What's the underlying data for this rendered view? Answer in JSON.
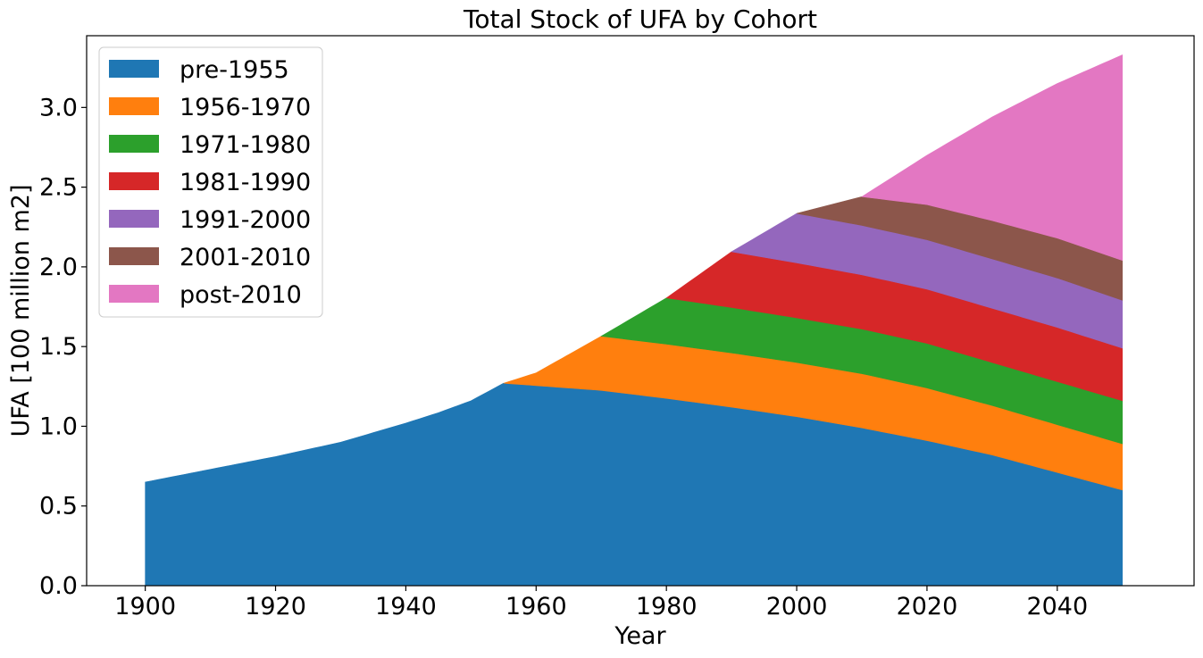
{
  "chart_data": {
    "type": "area",
    "title": "Total Stock of UFA by Cohort",
    "xlabel": "Year",
    "ylabel": "UFA [100 million m2]",
    "xlim": [
      1891,
      2061
    ],
    "ylim": [
      0,
      3.45
    ],
    "xticks": [
      1900,
      1920,
      1940,
      1960,
      1980,
      2000,
      2020,
      2040
    ],
    "yticks": [
      0.0,
      0.5,
      1.0,
      1.5,
      2.0,
      2.5,
      3.0
    ],
    "grid": false,
    "legend_position": "top-left",
    "series": [
      {
        "name": "pre-1955",
        "color": "#1f77b4",
        "points": [
          [
            1900,
            0.65
          ],
          [
            1905,
            0.69
          ],
          [
            1910,
            0.73
          ],
          [
            1915,
            0.77
          ],
          [
            1920,
            0.81
          ],
          [
            1925,
            0.855
          ],
          [
            1930,
            0.9
          ],
          [
            1935,
            0.96
          ],
          [
            1940,
            1.02
          ],
          [
            1945,
            1.085
          ],
          [
            1950,
            1.16
          ],
          [
            1955,
            1.27
          ],
          [
            1960,
            1.255
          ],
          [
            1970,
            1.225
          ],
          [
            1980,
            1.175
          ],
          [
            1990,
            1.12
          ],
          [
            2000,
            1.06
          ],
          [
            2010,
            0.99
          ],
          [
            2020,
            0.91
          ],
          [
            2030,
            0.82
          ],
          [
            2040,
            0.71
          ],
          [
            2050,
            0.6
          ]
        ]
      },
      {
        "name": "1956-1970",
        "color": "#ff7f0e",
        "points": [
          [
            1955,
            0
          ],
          [
            1960,
            0.08
          ],
          [
            1970,
            0.34
          ],
          [
            1980,
            0.34
          ],
          [
            1990,
            0.34
          ],
          [
            2000,
            0.34
          ],
          [
            2010,
            0.34
          ],
          [
            2020,
            0.33
          ],
          [
            2030,
            0.31
          ],
          [
            2040,
            0.3
          ],
          [
            2050,
            0.29
          ]
        ]
      },
      {
        "name": "1971-1980",
        "color": "#2ca02c",
        "points": [
          [
            1970,
            0
          ],
          [
            1980,
            0.29
          ],
          [
            1990,
            0.285
          ],
          [
            2000,
            0.28
          ],
          [
            2010,
            0.28
          ],
          [
            2020,
            0.28
          ],
          [
            2030,
            0.27
          ],
          [
            2040,
            0.27
          ],
          [
            2050,
            0.27
          ]
        ]
      },
      {
        "name": "1981-1990",
        "color": "#d62728",
        "points": [
          [
            1980,
            0
          ],
          [
            1990,
            0.35
          ],
          [
            2000,
            0.345
          ],
          [
            2010,
            0.34
          ],
          [
            2020,
            0.34
          ],
          [
            2030,
            0.34
          ],
          [
            2040,
            0.34
          ],
          [
            2050,
            0.33
          ]
        ]
      },
      {
        "name": "1991-2000",
        "color": "#9467bd",
        "points": [
          [
            1990,
            0
          ],
          [
            2000,
            0.31
          ],
          [
            2010,
            0.31
          ],
          [
            2020,
            0.31
          ],
          [
            2030,
            0.31
          ],
          [
            2040,
            0.31
          ],
          [
            2050,
            0.3
          ]
        ]
      },
      {
        "name": "2001-2010",
        "color": "#8c564b",
        "points": [
          [
            2000,
            0
          ],
          [
            2010,
            0.18
          ],
          [
            2020,
            0.22
          ],
          [
            2030,
            0.24
          ],
          [
            2040,
            0.25
          ],
          [
            2050,
            0.25
          ]
        ]
      },
      {
        "name": "post-2010",
        "color": "#e377c2",
        "points": [
          [
            2010,
            0
          ],
          [
            2020,
            0.31
          ],
          [
            2030,
            0.65
          ],
          [
            2040,
            0.97
          ],
          [
            2050,
            1.29
          ]
        ]
      }
    ]
  }
}
